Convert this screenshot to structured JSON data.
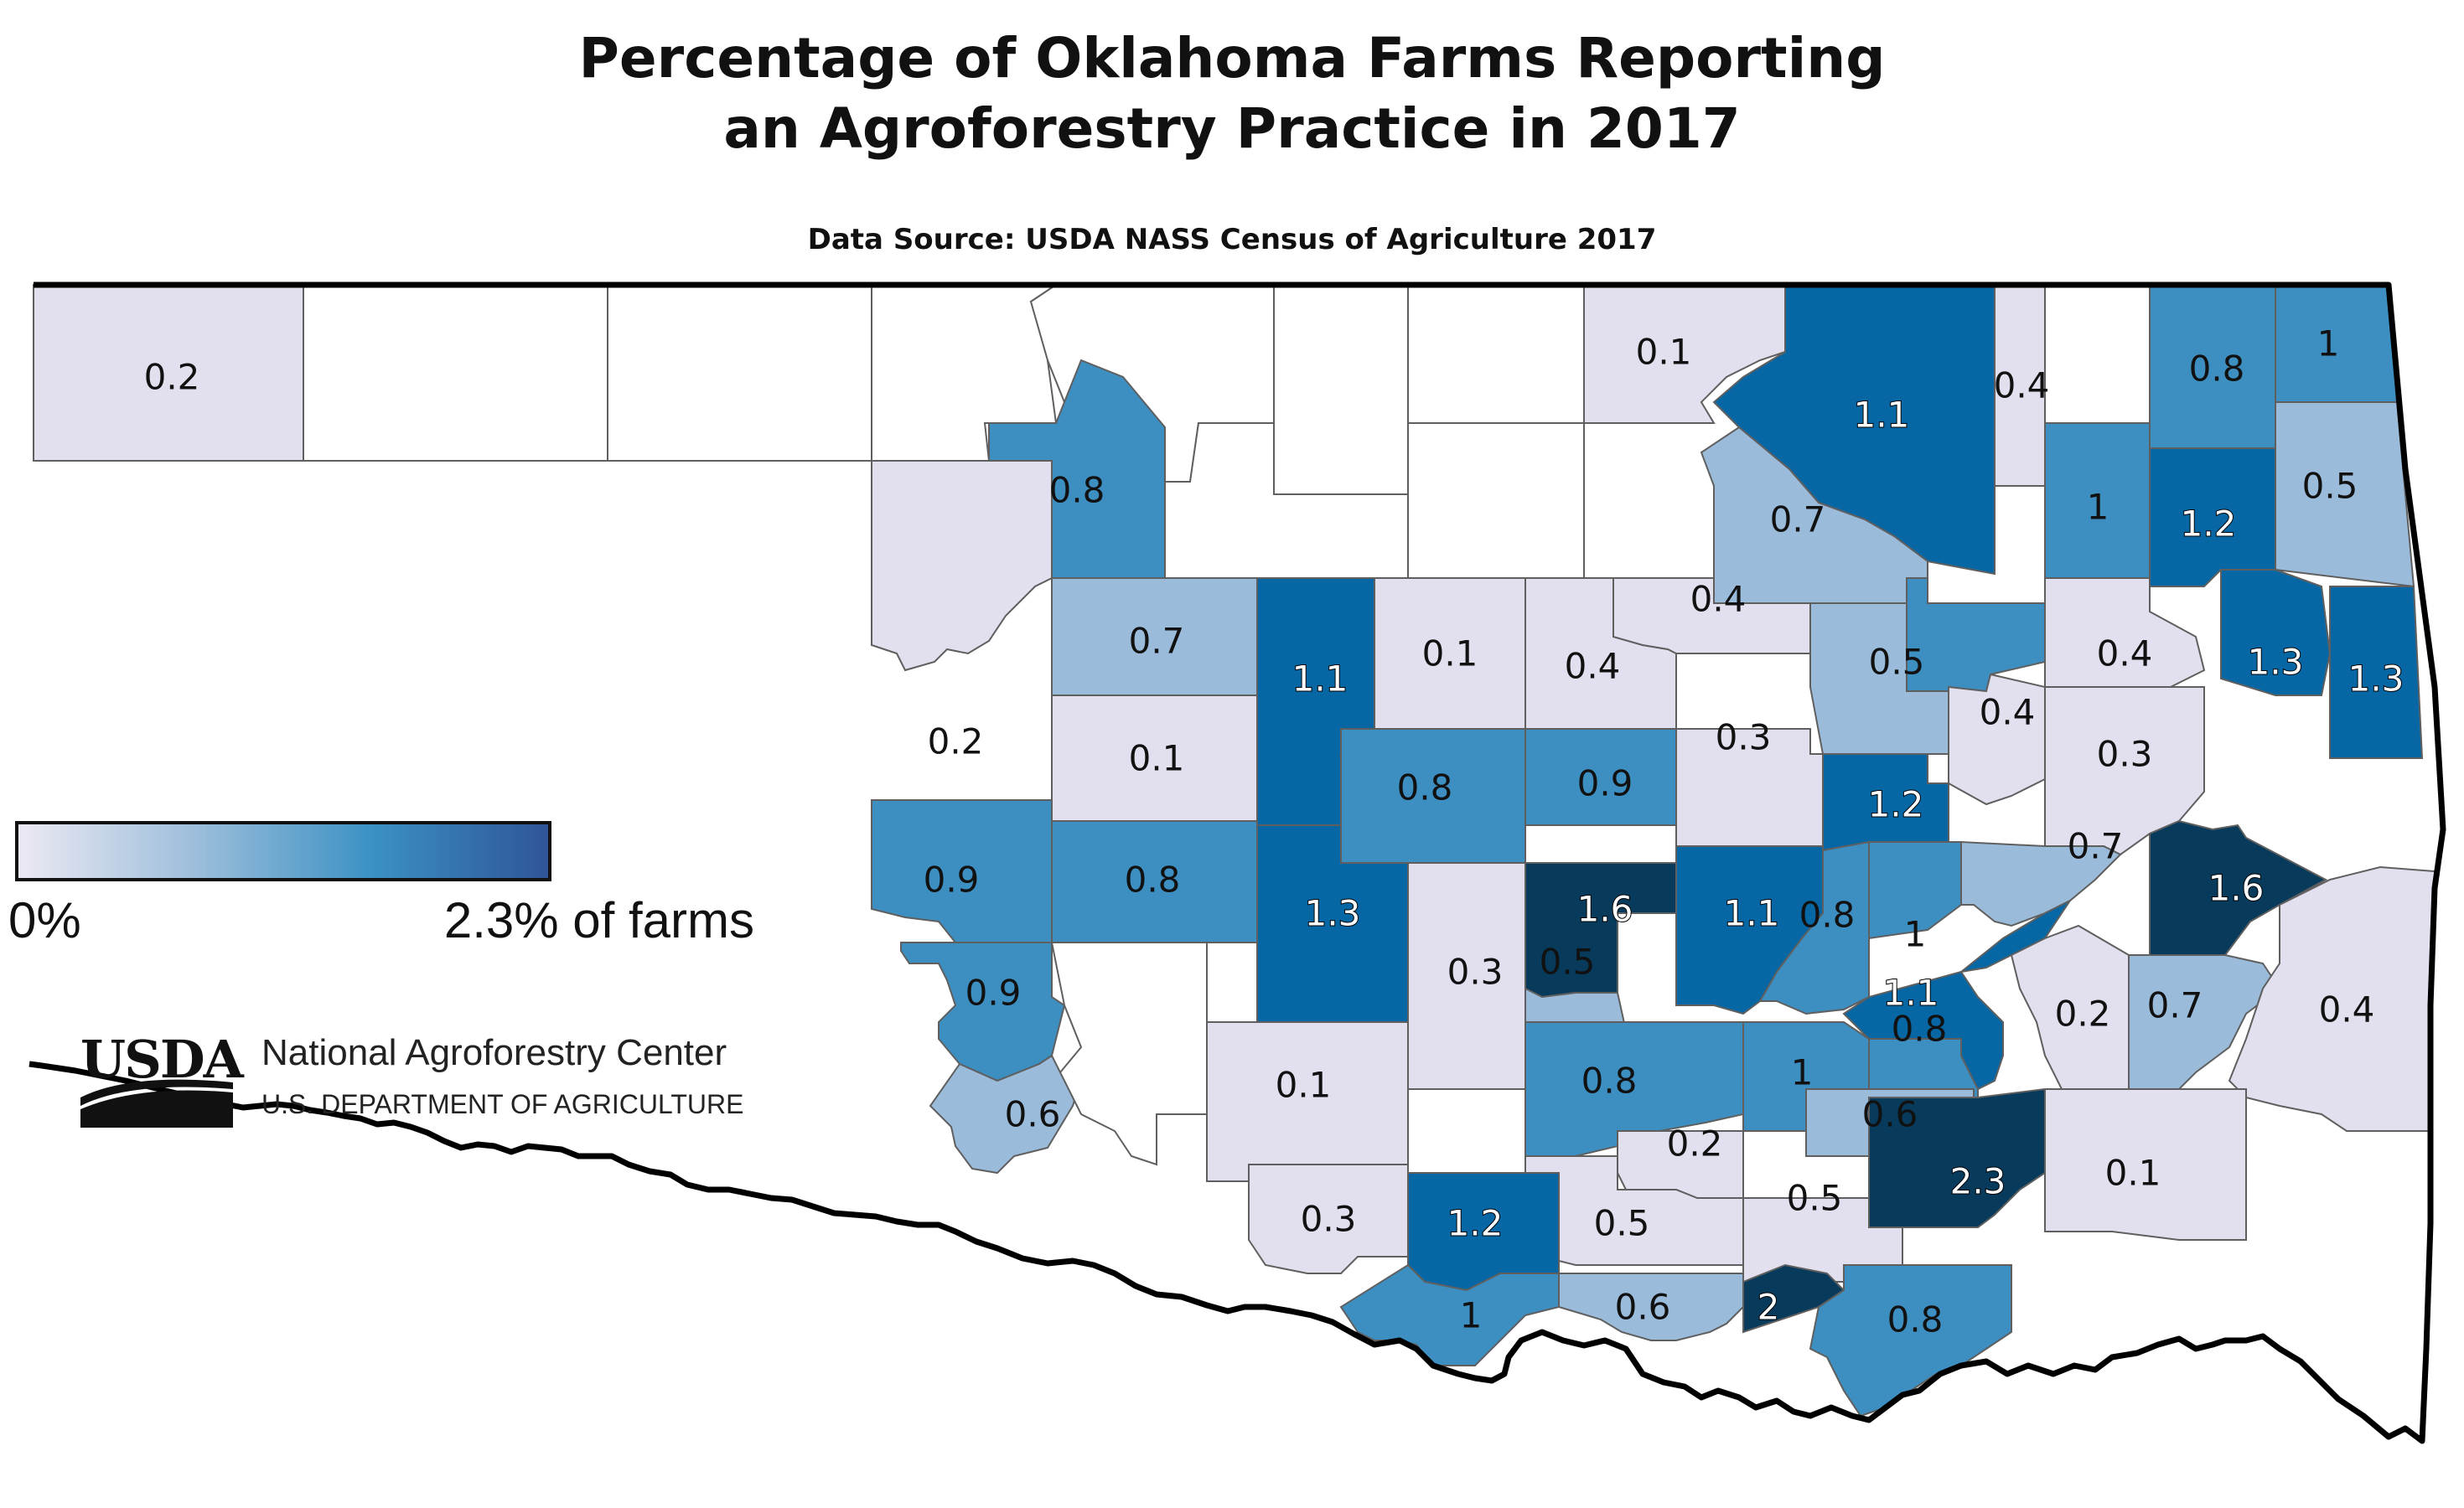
{
  "title": {
    "line1": "Percentage of Oklahoma Farms Reporting",
    "line2": "an Agroforestry Practice in 2017"
  },
  "source": "Data Source: USDA NASS Census of Agriculture 2017",
  "legend": {
    "min_label": "0%",
    "max_label": "2.3% of farms",
    "colors": [
      "#ece9f3",
      "#9dbedb",
      "#3b91c4",
      "#2f5597"
    ]
  },
  "organization": {
    "logo_text": "USDA",
    "name": "National Agroforestry Center",
    "department": "U.S. DEPARTMENT OF AGRICULTURE"
  },
  "colors": {
    "no_data": "#ffffff",
    "very_light": "#e2e0ee",
    "light": "#9bbbda",
    "medium": "#3d8fc2",
    "dark": "#0767a4",
    "darkest": "#073a5b",
    "county_border": "#5f5f5f",
    "state_border": "#000000"
  },
  "counties": [
    {
      "value": "0.2",
      "cls": "very_light"
    },
    {
      "value": "",
      "cls": "no_data"
    },
    {
      "value": "",
      "cls": "no_data"
    },
    {
      "value": "",
      "cls": "no_data"
    },
    {
      "value": "",
      "cls": "no_data"
    },
    {
      "value": "",
      "cls": "no_data"
    },
    {
      "value": "0.8",
      "cls": "medium"
    },
    {
      "value": "",
      "cls": "no_data"
    },
    {
      "value": "",
      "cls": "no_data"
    },
    {
      "value": "",
      "cls": "no_data"
    },
    {
      "value": "0.1",
      "cls": "very_light"
    },
    {
      "value": "1.1",
      "cls": "dark"
    },
    {
      "value": "0.4",
      "cls": "very_light"
    },
    {
      "value": "",
      "cls": "no_data"
    },
    {
      "value": "0.8",
      "cls": "medium"
    },
    {
      "value": "1",
      "cls": "medium"
    },
    {
      "value": "0.7",
      "cls": "light"
    },
    {
      "value": "1",
      "cls": "medium"
    },
    {
      "value": "1.2",
      "cls": "dark"
    },
    {
      "value": "0.5",
      "cls": "light"
    },
    {
      "value": "0.2",
      "cls": "very_light"
    },
    {
      "value": "0.7",
      "cls": "light"
    },
    {
      "value": "1.1",
      "cls": "dark"
    },
    {
      "value": "0.1",
      "cls": "very_light"
    },
    {
      "value": "0.4",
      "cls": "very_light"
    },
    {
      "value": "0.4",
      "cls": "very_light"
    },
    {
      "value": "0.8",
      "cls": "medium"
    },
    {
      "value": "0.5",
      "cls": "light"
    },
    {
      "value": "0.4",
      "cls": "very_light"
    },
    {
      "value": "1.3",
      "cls": "dark"
    },
    {
      "value": "1.3",
      "cls": "dark"
    },
    {
      "value": "0.1",
      "cls": "very_light"
    },
    {
      "value": "0.3",
      "cls": "very_light"
    },
    {
      "value": "0.8",
      "cls": "medium"
    },
    {
      "value": "0.9",
      "cls": "medium"
    },
    {
      "value": "0.3",
      "cls": "very_light"
    },
    {
      "value": "1.2",
      "cls": "dark"
    },
    {
      "value": "0.4",
      "cls": "very_light"
    },
    {
      "value": "0.3",
      "cls": "very_light"
    },
    {
      "value": "0.9",
      "cls": "medium"
    },
    {
      "value": "0.8",
      "cls": "medium"
    },
    {
      "value": "1.3",
      "cls": "dark"
    },
    {
      "value": "0.3",
      "cls": "very_light"
    },
    {
      "value": "1.6",
      "cls": "darkest"
    },
    {
      "value": "0.5",
      "cls": "light"
    },
    {
      "value": "1.1",
      "cls": "dark"
    },
    {
      "value": "0.8",
      "cls": "medium"
    },
    {
      "value": "1",
      "cls": "medium"
    },
    {
      "value": "0.7",
      "cls": "light"
    },
    {
      "value": "1.6",
      "cls": "darkest"
    },
    {
      "value": "0.9",
      "cls": "medium"
    },
    {
      "value": "0.6",
      "cls": "light"
    },
    {
      "value": "",
      "cls": "no_data"
    },
    {
      "value": "0.1",
      "cls": "very_light"
    },
    {
      "value": "0.8",
      "cls": "medium"
    },
    {
      "value": "1",
      "cls": "medium"
    },
    {
      "value": "0.8",
      "cls": "medium"
    },
    {
      "value": "1.1",
      "cls": "dark"
    },
    {
      "value": "0.7",
      "cls": "light"
    },
    {
      "value": "0.4",
      "cls": "very_light"
    },
    {
      "value": "0.2",
      "cls": "very_light"
    },
    {
      "value": "0.6",
      "cls": "light"
    },
    {
      "value": "0.2",
      "cls": "very_light"
    },
    {
      "value": "2.3",
      "cls": "darkest"
    },
    {
      "value": "0.1",
      "cls": "very_light"
    },
    {
      "value": "0.3",
      "cls": "very_light"
    },
    {
      "value": "0.5",
      "cls": "very_light"
    },
    {
      "value": "0.5",
      "cls": "very_light"
    },
    {
      "value": "1.2",
      "cls": "dark"
    },
    {
      "value": "1",
      "cls": "medium"
    },
    {
      "value": "0.6",
      "cls": "light"
    },
    {
      "value": "2",
      "cls": "darkest"
    },
    {
      "value": "0.8",
      "cls": "medium"
    }
  ]
}
